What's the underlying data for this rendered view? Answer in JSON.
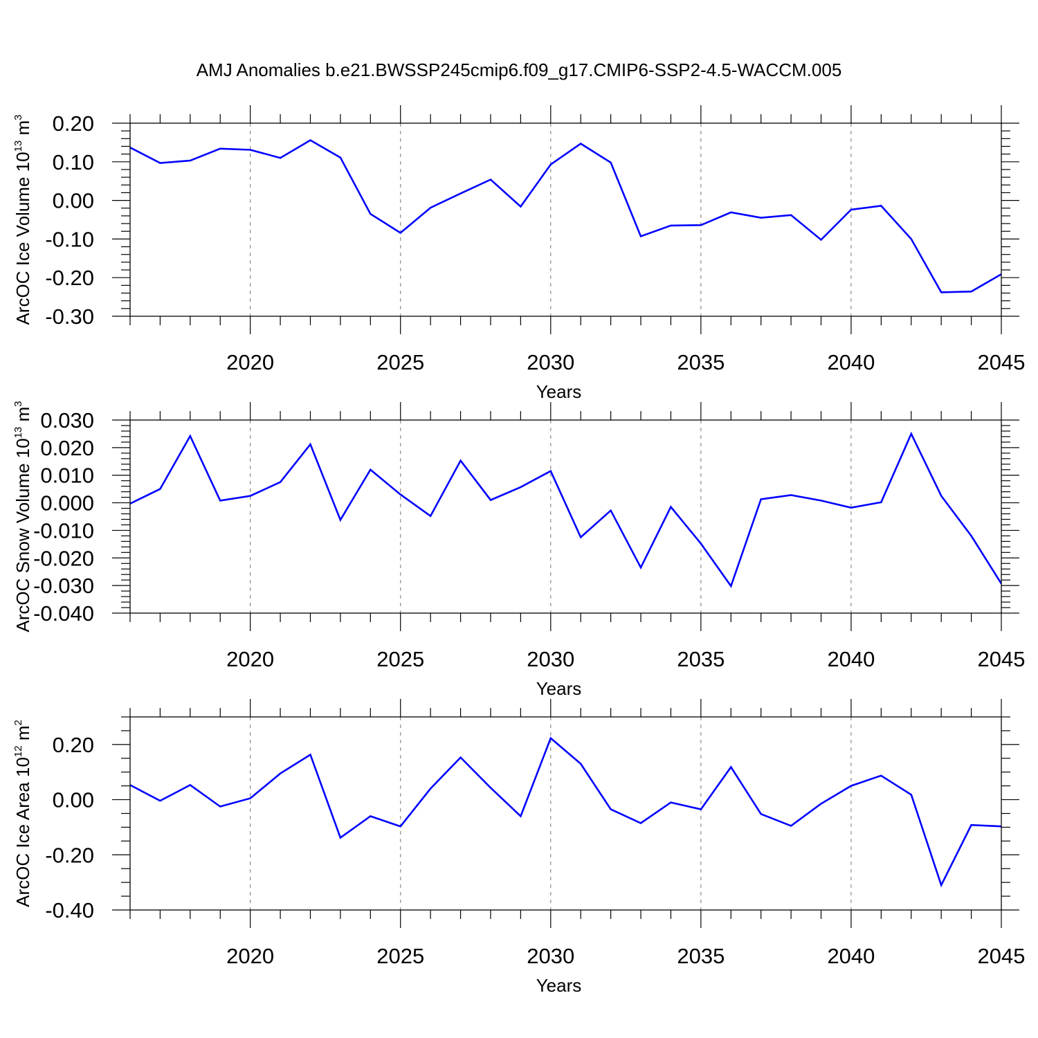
{
  "title": "AMJ Anomalies b.e21.BWSSP245cmip6.f09_g17.CMIP6-SSP2-4.5-WACCM.005",
  "colors": {
    "line": "#0000ff",
    "grid": "#8a8a8a",
    "axis": "#000000"
  },
  "chart_data": [
    {
      "type": "line",
      "name": "ice-volume",
      "ylabel": "ArcOC Ice Volume 10",
      "ylabel_exp": "13",
      "ylabel_unit": " m",
      "ylabel_unit_exp": "3",
      "xlabel": "Years",
      "xlim": [
        2016,
        2045
      ],
      "ylim": [
        -0.3,
        0.2
      ],
      "xticks": [
        2020,
        2025,
        2030,
        2035,
        2040,
        2045
      ],
      "xtick_labels": [
        "2020",
        "2025",
        "2030",
        "2035",
        "2040",
        "2045"
      ],
      "yticks": [
        -0.3,
        -0.2,
        -0.1,
        0.0,
        0.1,
        0.2
      ],
      "ytick_labels": [
        "-0.30",
        "-0.20",
        "-0.10",
        "0.00",
        "0.10",
        "0.20"
      ],
      "yminor_step": 0.02,
      "grid": "vertical dashed at major x ticks",
      "x": [
        2016,
        2017,
        2018,
        2019,
        2020,
        2021,
        2022,
        2023,
        2024,
        2025,
        2026,
        2027,
        2028,
        2029,
        2030,
        2031,
        2032,
        2033,
        2034,
        2035,
        2036,
        2037,
        2038,
        2039,
        2040,
        2041,
        2042,
        2043,
        2044,
        2045
      ],
      "values": [
        0.137,
        0.097,
        0.103,
        0.134,
        0.131,
        0.11,
        0.156,
        0.111,
        -0.035,
        -0.084,
        -0.019,
        0.018,
        0.054,
        -0.016,
        0.093,
        0.147,
        0.098,
        -0.093,
        -0.065,
        -0.064,
        -0.031,
        -0.045,
        -0.038,
        -0.102,
        -0.024,
        -0.014,
        -0.1,
        -0.238,
        -0.236,
        -0.191
      ]
    },
    {
      "type": "line",
      "name": "snow-volume",
      "ylabel": "ArcOC Snow Volume 10",
      "ylabel_exp": "13",
      "ylabel_unit": " m",
      "ylabel_unit_exp": "3",
      "xlabel": "Years",
      "xlim": [
        2016,
        2045
      ],
      "ylim": [
        -0.04,
        0.03
      ],
      "xticks": [
        2020,
        2025,
        2030,
        2035,
        2040,
        2045
      ],
      "xtick_labels": [
        "2020",
        "2025",
        "2030",
        "2035",
        "2040",
        "2045"
      ],
      "yticks": [
        -0.04,
        -0.03,
        -0.02,
        -0.01,
        0.0,
        0.01,
        0.02,
        0.03
      ],
      "ytick_labels": [
        "-0.040",
        "-0.030",
        "-0.020",
        "-0.010",
        "0.000",
        "0.010",
        "0.020",
        "0.030"
      ],
      "yminor_step": 0.002,
      "grid": "vertical dashed at major x ticks",
      "x": [
        2016,
        2017,
        2018,
        2019,
        2020,
        2021,
        2022,
        2023,
        2024,
        2025,
        2026,
        2027,
        2028,
        2029,
        2030,
        2031,
        2032,
        2033,
        2034,
        2035,
        2036,
        2037,
        2038,
        2039,
        2040,
        2041,
        2042,
        2043,
        2044,
        2045
      ],
      "values": [
        -0.0003,
        0.005,
        0.0242,
        0.0008,
        0.0025,
        0.0075,
        0.0212,
        -0.0062,
        0.012,
        0.003,
        -0.0048,
        0.0153,
        0.001,
        0.0057,
        0.0115,
        -0.0125,
        -0.0028,
        -0.0235,
        -0.0015,
        -0.0148,
        -0.0302,
        0.0013,
        0.0028,
        0.0008,
        -0.0018,
        0.0002,
        0.025,
        0.0025,
        -0.012,
        -0.0293
      ]
    },
    {
      "type": "line",
      "name": "ice-area",
      "ylabel": "ArcOC Ice Area 10",
      "ylabel_exp": "12",
      "ylabel_unit": " m",
      "ylabel_unit_exp": "2",
      "xlabel": "Years",
      "xlim": [
        2016,
        2045
      ],
      "ylim": [
        -0.4,
        0.3
      ],
      "xticks": [
        2020,
        2025,
        2030,
        2035,
        2040,
        2045
      ],
      "xtick_labels": [
        "2020",
        "2025",
        "2030",
        "2035",
        "2040",
        "2045"
      ],
      "yticks": [
        -0.4,
        -0.2,
        0.0,
        0.2
      ],
      "ytick_labels": [
        "-0.40",
        "-0.20",
        "0.00",
        "0.20"
      ],
      "yminor_step": 0.05,
      "grid": "vertical dashed at major x ticks",
      "x": [
        2016,
        2017,
        2018,
        2019,
        2020,
        2021,
        2022,
        2023,
        2024,
        2025,
        2026,
        2027,
        2028,
        2029,
        2030,
        2031,
        2032,
        2033,
        2034,
        2035,
        2036,
        2037,
        2038,
        2039,
        2040,
        2041,
        2042,
        2043,
        2044,
        2045
      ],
      "values": [
        0.053,
        -0.004,
        0.053,
        -0.025,
        0.005,
        0.095,
        0.163,
        -0.138,
        -0.06,
        -0.097,
        0.04,
        0.153,
        0.043,
        -0.06,
        0.223,
        0.13,
        -0.035,
        -0.085,
        -0.01,
        -0.035,
        0.118,
        -0.052,
        -0.095,
        -0.015,
        0.05,
        0.087,
        0.018,
        -0.31,
        -0.092,
        -0.097
      ]
    }
  ]
}
